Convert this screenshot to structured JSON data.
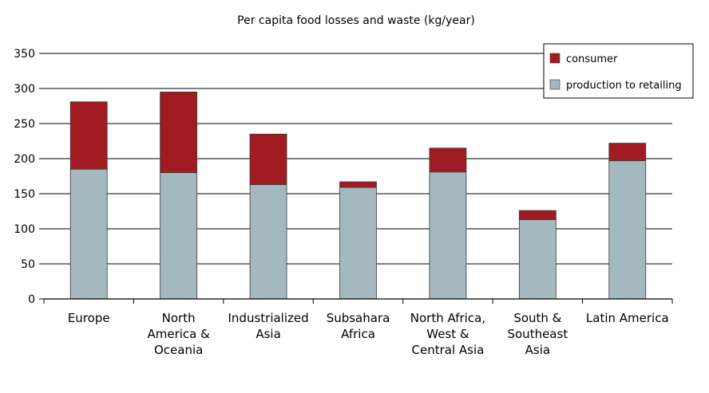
{
  "chart_data": {
    "type": "bar",
    "stacked": true,
    "title": "Per capita food losses and waste (kg/year)",
    "xlabel": "",
    "ylabel": "",
    "ylim": [
      0,
      350
    ],
    "yticks": [
      0,
      50,
      100,
      150,
      200,
      250,
      300,
      350
    ],
    "grid": true,
    "legend_position": "top-right",
    "categories": [
      [
        "Europe"
      ],
      [
        "North",
        "America &",
        "Oceania"
      ],
      [
        "Industrialized",
        "Asia"
      ],
      [
        "Subsahara",
        "Africa"
      ],
      [
        "North Africa,",
        "West &",
        "Central Asia"
      ],
      [
        "South &",
        "Southeast",
        "Asia"
      ],
      [
        "Latin America"
      ]
    ],
    "series": [
      {
        "name": "production to retailing",
        "color": "#a3b8bf",
        "values": [
          185,
          180,
          163,
          159,
          181,
          113,
          197
        ]
      },
      {
        "name": "consumer",
        "color": "#a01c22",
        "values": [
          96,
          115,
          72,
          8,
          34,
          13,
          25
        ]
      }
    ]
  }
}
